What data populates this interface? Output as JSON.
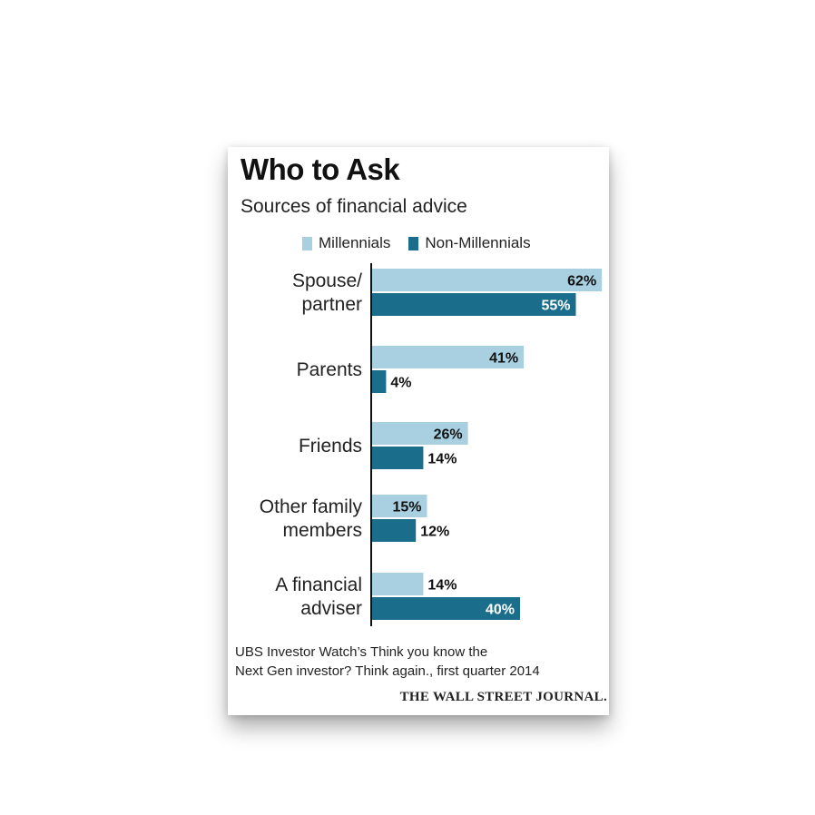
{
  "colors": {
    "millennials": "#a8d0e0",
    "non_millennials": "#1a6e8c",
    "axis": "#111111"
  },
  "chart_data": {
    "type": "bar",
    "orientation": "horizontal",
    "title": "Who to Ask",
    "subtitle": "Sources of financial advice",
    "categories": [
      [
        "Spouse/",
        "partner"
      ],
      [
        "Parents"
      ],
      [
        "Friends"
      ],
      [
        "Other family",
        "members"
      ],
      [
        "A financial",
        "adviser"
      ]
    ],
    "series": [
      {
        "name": "Millennials",
        "values": [
          62,
          41,
          26,
          15,
          14
        ]
      },
      {
        "name": "Non-Millennials",
        "values": [
          55,
          4,
          14,
          12,
          40
        ]
      }
    ],
    "value_suffix": "%",
    "legend_position": "top",
    "grid": false
  },
  "source": {
    "line1": "UBS Investor Watch’s Think you know the",
    "line2": "Next Gen investor? Think again., first quarter 2014"
  },
  "brand": "THE WALL STREET JOURNAL."
}
